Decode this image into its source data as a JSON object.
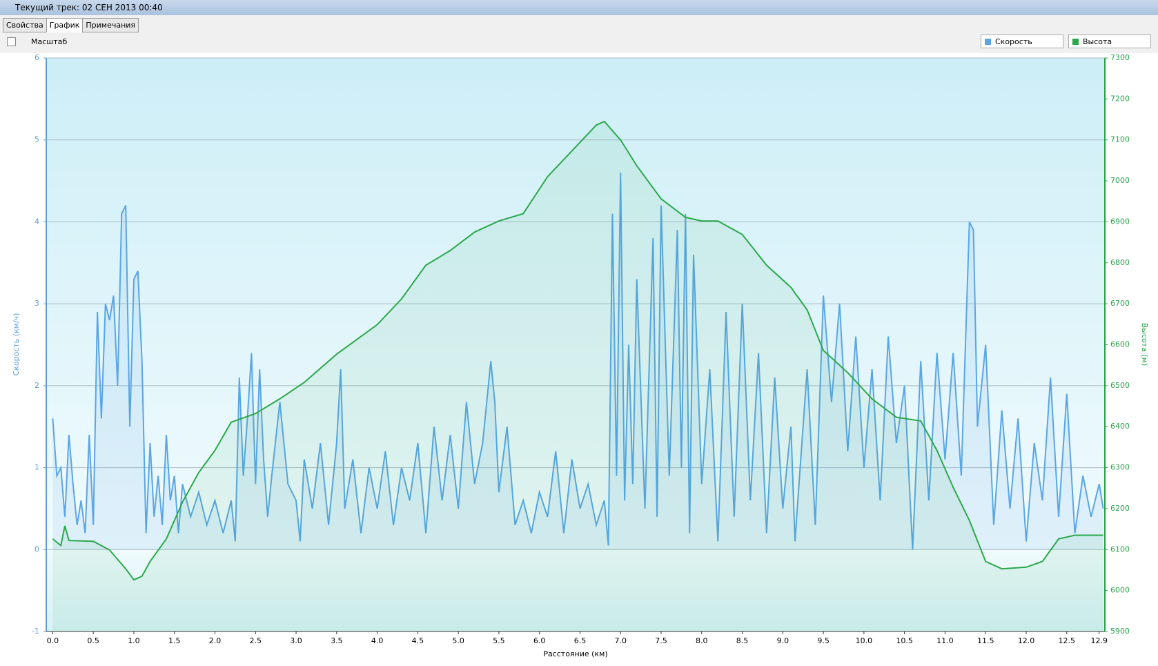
{
  "window": {
    "title": "Текущий трек: 02 СЕН 2013 00:40",
    "tabs": [
      "Свойства",
      "График",
      "Примечания"
    ],
    "zoom_label": "Масштаб"
  },
  "chart_data": {
    "type": "line",
    "x_label": "Расстояние (км)",
    "y_label": "Скорость (км/ч)",
    "y2_label": "Высота (м)",
    "xlim": [
      -0.08,
      12.97
    ],
    "ylim": [
      -1,
      6
    ],
    "y2lim": [
      5900,
      7300
    ],
    "grid": true,
    "xticks": [
      {
        "value": 0,
        "label": "0.0"
      },
      0.5,
      {
        "value": 1,
        "label": "1.0"
      },
      1.5,
      {
        "value": 2,
        "label": "2.0"
      },
      2.5,
      {
        "value": 3,
        "label": "3.0"
      },
      3.5,
      {
        "value": 4,
        "label": "4.0"
      },
      4.5,
      {
        "value": 5,
        "label": "5.0"
      },
      5.5,
      {
        "value": 6,
        "label": "6.0"
      },
      6.5,
      {
        "value": 7,
        "label": "7.0"
      },
      7.5,
      {
        "value": 8,
        "label": "8.0"
      },
      8.5,
      {
        "value": 9,
        "label": "9.0"
      },
      9.5,
      {
        "value": 10,
        "label": "10.0"
      },
      10.5,
      {
        "value": 11,
        "label": "11.0"
      },
      11.5,
      {
        "value": 12,
        "label": "12.0"
      },
      12.5,
      12.9
    ],
    "yticks": [
      -1,
      0,
      1,
      2,
      3,
      4,
      5,
      6
    ],
    "y2ticks": [
      5900,
      6000,
      6100,
      6200,
      6300,
      6400,
      6500,
      6600,
      6700,
      6800,
      6900,
      7000,
      7100,
      7200,
      7300
    ],
    "series": [
      {
        "name": "Скорость",
        "color": "#5aa5e6",
        "x": [
          0,
          0.05,
          0.1,
          0.15,
          0.2,
          0.25,
          0.3,
          0.35,
          0.4,
          0.45,
          0.5,
          0.55,
          0.6,
          0.65,
          0.7,
          0.75,
          0.8,
          0.85,
          0.9,
          0.95,
          1,
          1.05,
          1.1,
          1.15,
          1.2,
          1.25,
          1.3,
          1.35,
          1.4,
          1.45,
          1.5,
          1.55,
          1.6,
          1.7,
          1.8,
          1.9,
          2,
          2.1,
          2.2,
          2.25,
          2.3,
          2.35,
          2.4,
          2.45,
          2.5,
          2.55,
          2.6,
          2.65,
          2.7,
          2.8,
          2.9,
          3,
          3.05,
          3.1,
          3.2,
          3.3,
          3.4,
          3.5,
          3.55,
          3.6,
          3.7,
          3.8,
          3.9,
          4,
          4.1,
          4.2,
          4.3,
          4.4,
          4.5,
          4.6,
          4.7,
          4.8,
          4.9,
          5,
          5.1,
          5.2,
          5.3,
          5.4,
          5.45,
          5.5,
          5.6,
          5.7,
          5.8,
          5.9,
          6,
          6.1,
          6.2,
          6.3,
          6.4,
          6.5,
          6.6,
          6.7,
          6.8,
          6.85,
          6.9,
          6.95,
          7,
          7.05,
          7.1,
          7.15,
          7.2,
          7.3,
          7.4,
          7.45,
          7.5,
          7.6,
          7.7,
          7.75,
          7.8,
          7.85,
          7.9,
          8,
          8.1,
          8.2,
          8.3,
          8.4,
          8.5,
          8.6,
          8.7,
          8.8,
          8.9,
          9,
          9.1,
          9.15,
          9.2,
          9.3,
          9.4,
          9.5,
          9.6,
          9.7,
          9.8,
          9.9,
          10,
          10.1,
          10.2,
          10.3,
          10.4,
          10.5,
          10.6,
          10.7,
          10.8,
          10.9,
          11,
          11.1,
          11.2,
          11.3,
          11.35,
          11.4,
          11.5,
          11.6,
          11.7,
          11.8,
          11.9,
          12,
          12.1,
          12.2,
          12.3,
          12.4,
          12.5,
          12.6,
          12.7,
          12.8,
          12.9,
          12.95
        ],
        "values": [
          1.6,
          0.9,
          1,
          0.4,
          1.4,
          0.8,
          0.3,
          0.6,
          0.2,
          1.4,
          0.3,
          2.9,
          1.6,
          3,
          2.8,
          3.1,
          2,
          4.1,
          4.2,
          1.5,
          3.3,
          3.4,
          2.3,
          0.2,
          1.3,
          0.4,
          0.9,
          0.3,
          1.4,
          0.6,
          0.9,
          0.2,
          0.8,
          0.4,
          0.7,
          0.3,
          0.6,
          0.2,
          0.6,
          0.1,
          2.1,
          0.9,
          1.6,
          2.4,
          0.8,
          2.2,
          1.1,
          0.4,
          0.9,
          1.8,
          0.8,
          0.6,
          0.1,
          1.1,
          0.5,
          1.3,
          0.3,
          1.3,
          2.2,
          0.5,
          1.1,
          0.2,
          1,
          0.5,
          1.2,
          0.3,
          1,
          0.6,
          1.3,
          0.2,
          1.5,
          0.6,
          1.4,
          0.5,
          1.8,
          0.8,
          1.3,
          2.3,
          1.8,
          0.7,
          1.5,
          0.3,
          0.6,
          0.2,
          0.7,
          0.4,
          1.2,
          0.2,
          1.1,
          0.5,
          0.8,
          0.3,
          0.6,
          0.05,
          4.1,
          0.9,
          4.6,
          0.6,
          2.5,
          0.8,
          3.3,
          0.5,
          3.8,
          0.4,
          4.2,
          0.9,
          3.9,
          1,
          4.1,
          0.2,
          3.6,
          0.8,
          2.2,
          0.1,
          2.9,
          0.4,
          3,
          0.6,
          2.4,
          0.2,
          2.1,
          0.5,
          1.5,
          0.1,
          0.8,
          2.2,
          0.3,
          3.1,
          1.8,
          3,
          1.2,
          2.6,
          1,
          2.2,
          0.6,
          2.6,
          1.3,
          2,
          0,
          2.3,
          0.6,
          2.4,
          1.1,
          2.4,
          0.9,
          4,
          3.9,
          1.5,
          2.5,
          0.3,
          1.7,
          0.5,
          1.6,
          0.1,
          1.3,
          0.6,
          2.1,
          0.4,
          1.9,
          0.2,
          0.9,
          0.4,
          0.8,
          0.5
        ]
      },
      {
        "name": "Высота",
        "color": "#2aa84a",
        "axis": "y2",
        "x": [
          0,
          0.1,
          0.15,
          0.2,
          0.5,
          0.7,
          0.9,
          1,
          1.1,
          1.2,
          1.4,
          1.6,
          1.8,
          2,
          2.2,
          2.5,
          2.8,
          3.1,
          3.5,
          4,
          4.3,
          4.6,
          4.9,
          5.2,
          5.5,
          5.8,
          6.1,
          6.4,
          6.7,
          6.8,
          7,
          7.2,
          7.5,
          7.8,
          8,
          8.2,
          8.5,
          8.8,
          9.1,
          9.3,
          9.5,
          9.8,
          10.1,
          10.4,
          10.7,
          10.9,
          11.1,
          11.3,
          11.5,
          11.7,
          12,
          12.2,
          12.4,
          12.6,
          12.95
        ],
        "values": [
          6126,
          6110,
          6158,
          6122,
          6120,
          6099,
          6053,
          6026,
          6035,
          6071,
          6126,
          6216,
          6288,
          6342,
          6411,
          6432,
          6468,
          6508,
          6577,
          6649,
          6712,
          6794,
          6830,
          6875,
          6902,
          6920,
          7010,
          7073,
          7136,
          7145,
          7100,
          7037,
          6956,
          6911,
          6902,
          6902,
          6869,
          6794,
          6740,
          6685,
          6586,
          6532,
          6468,
          6423,
          6414,
          6342,
          6252,
          6171,
          6071,
          6053,
          6057,
          6071,
          6126,
          6135,
          6135
        ]
      }
    ]
  }
}
